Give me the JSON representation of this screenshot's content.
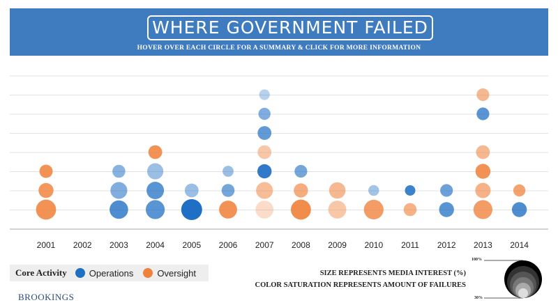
{
  "header": {
    "title": "WHERE GOVERNMENT FAILED",
    "subtitle": "HOVER OVER EACH CIRCLE FOR A SUMMARY & CLICK FOR MORE INFORMATION"
  },
  "legend": {
    "title": "Core Activity",
    "items": [
      {
        "label": "Operations",
        "color": "#1f6fc4"
      },
      {
        "label": "Oversight",
        "color": "#f0823c"
      }
    ]
  },
  "notes": {
    "size": "SIZE REPRESENTS MEDIA INTEREST (%)",
    "color": "COLOR SATURATION REPRESENTS AMOUNT OF FAILURES"
  },
  "scale": {
    "max_label": "100%",
    "min_label": "30%"
  },
  "brand": "BROOKINGS",
  "chart_data": {
    "type": "scatter",
    "title": "WHERE GOVERNMENT FAILED",
    "xlabel": "",
    "ylabel": "",
    "categories": [
      "2001",
      "2002",
      "2003",
      "2004",
      "2005",
      "2006",
      "2007",
      "2008",
      "2009",
      "2010",
      "2011",
      "2012",
      "2013",
      "2014"
    ],
    "stack_rows": 8,
    "size_range_percent": [
      30,
      100
    ],
    "saturation_range": [
      0,
      1
    ],
    "series": [
      {
        "name": "Operations",
        "color": "#1f6fc4",
        "points": [
          {
            "year": "2003",
            "row": 1,
            "size": 85,
            "sat": 0.75
          },
          {
            "year": "2003",
            "row": 2,
            "size": 75,
            "sat": 0.5
          },
          {
            "year": "2003",
            "row": 3,
            "size": 50,
            "sat": 0.45
          },
          {
            "year": "2004",
            "row": 1,
            "size": 88,
            "sat": 0.7
          },
          {
            "year": "2004",
            "row": 2,
            "size": 78,
            "sat": 0.7
          },
          {
            "year": "2004",
            "row": 3,
            "size": 70,
            "sat": 0.35
          },
          {
            "year": "2005",
            "row": 1,
            "size": 100,
            "sat": 1.0
          },
          {
            "year": "2005",
            "row": 2,
            "size": 55,
            "sat": 0.35
          },
          {
            "year": "2006",
            "row": 2,
            "size": 50,
            "sat": 0.55
          },
          {
            "year": "2006",
            "row": 3,
            "size": 38,
            "sat": 0.35
          },
          {
            "year": "2007",
            "row": 3,
            "size": 58,
            "sat": 0.9
          },
          {
            "year": "2007",
            "row": 5,
            "size": 55,
            "sat": 0.65
          },
          {
            "year": "2007",
            "row": 6,
            "size": 45,
            "sat": 0.5
          },
          {
            "year": "2007",
            "row": 7,
            "size": 35,
            "sat": 0.2
          },
          {
            "year": "2008",
            "row": 3,
            "size": 48,
            "sat": 0.55
          },
          {
            "year": "2010",
            "row": 2,
            "size": 36,
            "sat": 0.3
          },
          {
            "year": "2011",
            "row": 2,
            "size": 34,
            "sat": 0.85
          },
          {
            "year": "2012",
            "row": 1,
            "size": 62,
            "sat": 0.7
          },
          {
            "year": "2012",
            "row": 2,
            "size": 48,
            "sat": 0.6
          },
          {
            "year": "2013",
            "row": 6,
            "size": 48,
            "sat": 0.7
          },
          {
            "year": "2014",
            "row": 1,
            "size": 62,
            "sat": 0.75
          }
        ]
      },
      {
        "name": "Oversight",
        "color": "#f0823c",
        "points": [
          {
            "year": "2001",
            "row": 1,
            "size": 95,
            "sat": 0.85
          },
          {
            "year": "2001",
            "row": 2,
            "size": 62,
            "sat": 0.8
          },
          {
            "year": "2001",
            "row": 3,
            "size": 52,
            "sat": 0.85
          },
          {
            "year": "2004",
            "row": 4,
            "size": 55,
            "sat": 0.85
          },
          {
            "year": "2006",
            "row": 1,
            "size": 82,
            "sat": 0.85
          },
          {
            "year": "2007",
            "row": 1,
            "size": 82,
            "sat": 0.15
          },
          {
            "year": "2007",
            "row": 2,
            "size": 75,
            "sat": 0.45
          },
          {
            "year": "2007",
            "row": 4,
            "size": 55,
            "sat": 0.35
          },
          {
            "year": "2008",
            "row": 1,
            "size": 95,
            "sat": 0.9
          },
          {
            "year": "2008",
            "row": 2,
            "size": 58,
            "sat": 0.6
          },
          {
            "year": "2009",
            "row": 1,
            "size": 82,
            "sat": 0.35
          },
          {
            "year": "2009",
            "row": 2,
            "size": 72,
            "sat": 0.5
          },
          {
            "year": "2010",
            "row": 1,
            "size": 92,
            "sat": 0.75
          },
          {
            "year": "2011",
            "row": 1,
            "size": 50,
            "sat": 0.55
          },
          {
            "year": "2013",
            "row": 1,
            "size": 88,
            "sat": 0.75
          },
          {
            "year": "2013",
            "row": 2,
            "size": 65,
            "sat": 0.55
          },
          {
            "year": "2013",
            "row": 3,
            "size": 62,
            "sat": 0.85
          },
          {
            "year": "2013",
            "row": 4,
            "size": 55,
            "sat": 0.5
          },
          {
            "year": "2013",
            "row": 7,
            "size": 48,
            "sat": 0.5
          },
          {
            "year": "2014",
            "row": 2,
            "size": 45,
            "sat": 0.7
          }
        ]
      }
    ]
  }
}
